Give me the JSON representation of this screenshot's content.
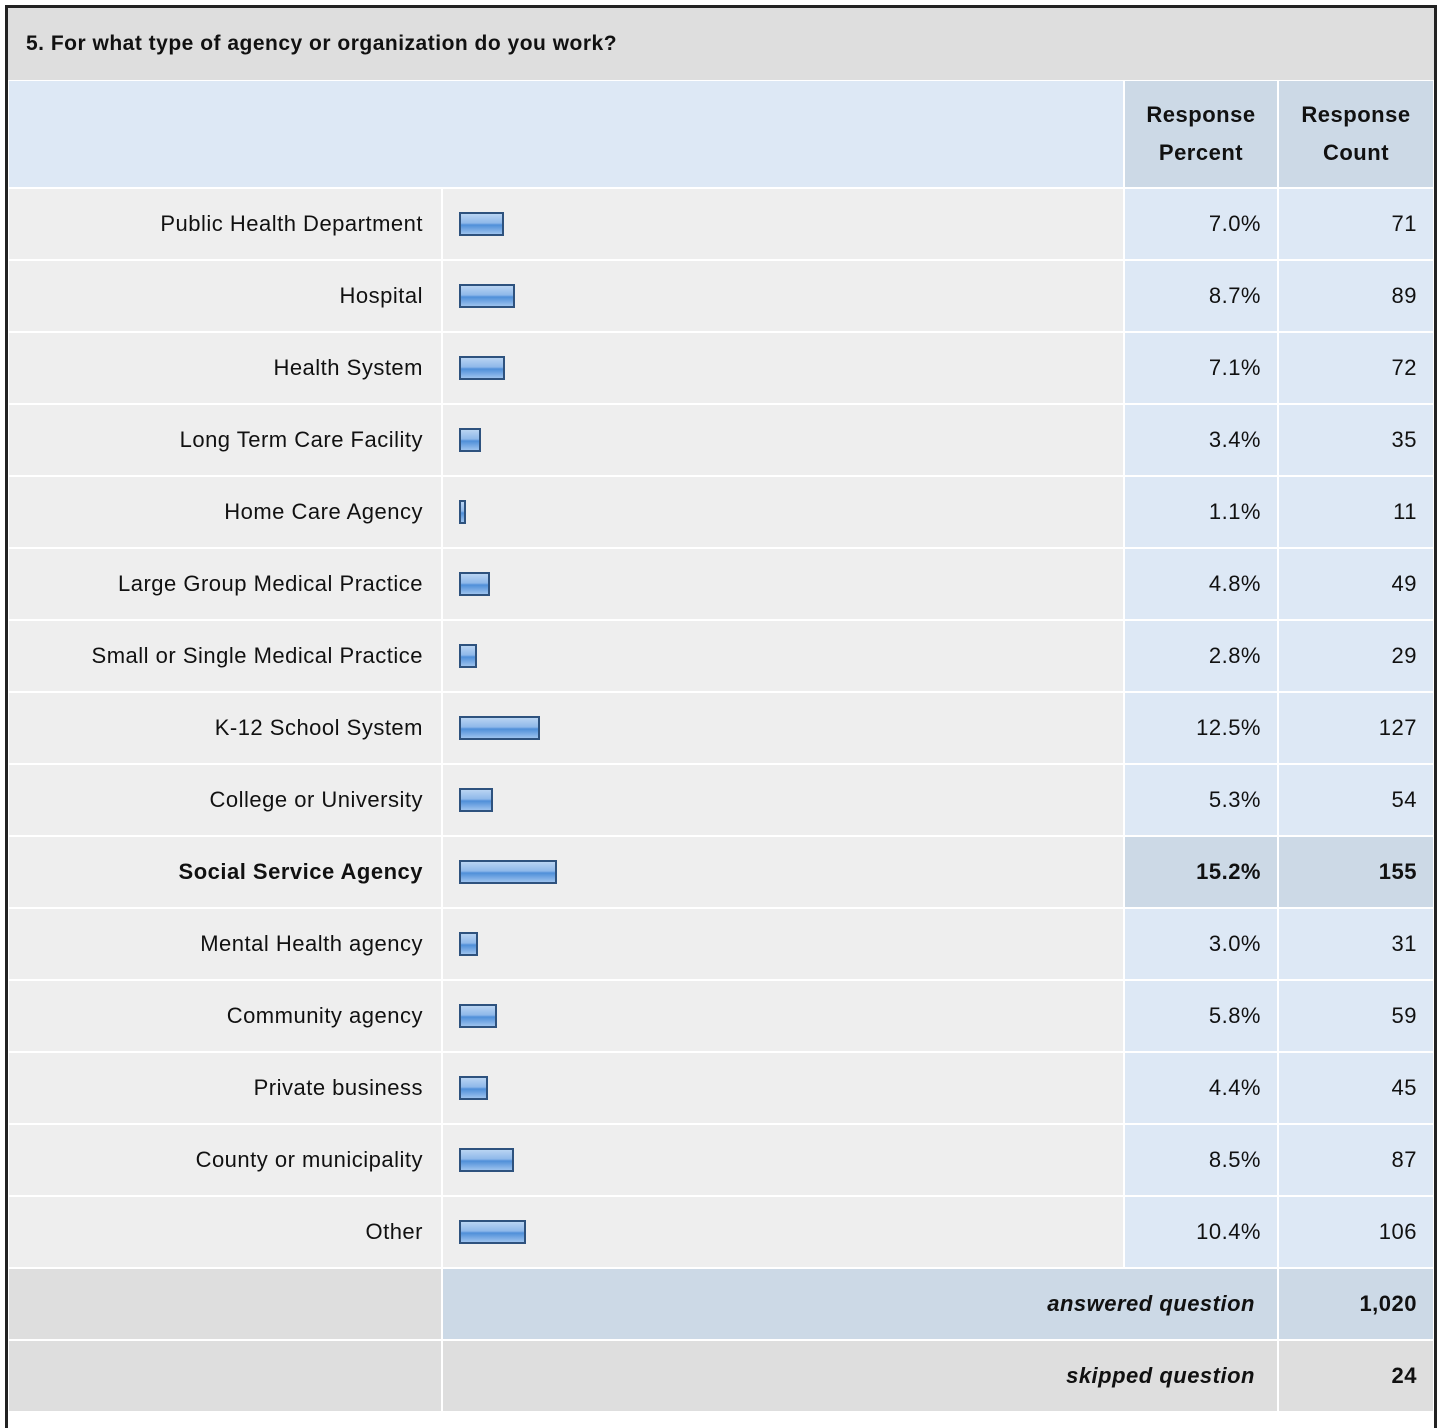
{
  "title": "5. For what type of agency or organization do you work?",
  "header": {
    "percent": "Response Percent",
    "count": "Response Count"
  },
  "highlighted_row": 9,
  "rows": [
    {
      "label": "Public Health Department",
      "percent": 7.0,
      "percent_label": "7.0%",
      "count": 71
    },
    {
      "label": "Hospital",
      "percent": 8.7,
      "percent_label": "8.7%",
      "count": 89
    },
    {
      "label": "Health System",
      "percent": 7.1,
      "percent_label": "7.1%",
      "count": 72
    },
    {
      "label": "Long Term Care Facility",
      "percent": 3.4,
      "percent_label": "3.4%",
      "count": 35
    },
    {
      "label": "Home Care Agency",
      "percent": 1.1,
      "percent_label": "1.1%",
      "count": 11
    },
    {
      "label": "Large Group Medical Practice",
      "percent": 4.8,
      "percent_label": "4.8%",
      "count": 49
    },
    {
      "label": "Small or Single Medical Practice",
      "percent": 2.8,
      "percent_label": "2.8%",
      "count": 29
    },
    {
      "label": "K-12 School System",
      "percent": 12.5,
      "percent_label": "12.5%",
      "count": 127
    },
    {
      "label": "College or University",
      "percent": 5.3,
      "percent_label": "5.3%",
      "count": 54
    },
    {
      "label": "Social Service Agency",
      "percent": 15.2,
      "percent_label": "15.2%",
      "count": 155
    },
    {
      "label": "Mental Health agency",
      "percent": 3.0,
      "percent_label": "3.0%",
      "count": 31
    },
    {
      "label": "Community agency",
      "percent": 5.8,
      "percent_label": "5.8%",
      "count": 59
    },
    {
      "label": "Private business",
      "percent": 4.4,
      "percent_label": "4.4%",
      "count": 45
    },
    {
      "label": "County or municipality",
      "percent": 8.5,
      "percent_label": "8.5%",
      "count": 87
    },
    {
      "label": "Other",
      "percent": 10.4,
      "percent_label": "10.4%",
      "count": 106
    }
  ],
  "footer": {
    "answered": {
      "label": "answered question",
      "count": "1,020"
    },
    "skipped": {
      "label": "skipped question",
      "count": "24"
    }
  }
}
